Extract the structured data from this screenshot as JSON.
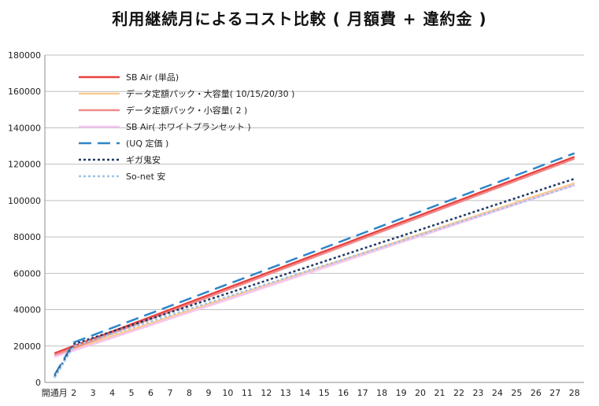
{
  "chart_data": {
    "type": "line",
    "title": "利用継続月によるコスト比較 ( 月額費 + 違約金 )",
    "xlabel": "",
    "ylabel": "",
    "ylim": [
      0,
      180000
    ],
    "yticks": [
      0,
      20000,
      40000,
      60000,
      80000,
      100000,
      120000,
      140000,
      160000,
      180000
    ],
    "categories": [
      "開通月",
      "2",
      "3",
      "4",
      "5",
      "6",
      "7",
      "8",
      "9",
      "10",
      "11",
      "12",
      "13",
      "14",
      "15",
      "16",
      "17",
      "18",
      "19",
      "20",
      "21",
      "22",
      "23",
      "24",
      "25",
      "26",
      "27",
      "28"
    ],
    "grid": true,
    "legend_position": "top-left",
    "series": [
      {
        "name": "SB Air (単品)",
        "color": "#e8403e",
        "dash": "solid",
        "width": 2.5,
        "values": [
          16000,
          20000,
          24000,
          28000,
          32000,
          36000,
          40000,
          44000,
          48000,
          52000,
          56000,
          60000,
          64000,
          68000,
          72000,
          76000,
          80000,
          84000,
          88000,
          92000,
          96000,
          100000,
          104000,
          108000,
          112000,
          116000,
          120000,
          124000
        ]
      },
      {
        "name": "データ定額パック・大容量( 10/15/20/30 )",
        "color": "#fbc98f",
        "dash": "solid",
        "width": 2.5,
        "values": [
          15000,
          18500,
          22000,
          25500,
          29000,
          32500,
          36000,
          39500,
          43000,
          46500,
          50000,
          53500,
          57000,
          60500,
          64000,
          67500,
          71000,
          74500,
          78000,
          81500,
          85000,
          88500,
          92000,
          95500,
          99000,
          102500,
          106000,
          109500
        ]
      },
      {
        "name": "データ定額パック・小容量( 2 )",
        "color": "#f08a8a",
        "dash": "solid",
        "width": 2.5,
        "values": [
          15000,
          19000,
          23000,
          27000,
          31000,
          35000,
          39000,
          43000,
          47000,
          51000,
          55000,
          59000,
          63000,
          67000,
          71000,
          75000,
          79000,
          83000,
          87000,
          91000,
          95000,
          99000,
          103000,
          107000,
          111000,
          115000,
          119000,
          123000
        ]
      },
      {
        "name": "SB Air( ホワイトプランセット )",
        "color": "#f7c6f3",
        "dash": "solid",
        "width": 2.5,
        "values": [
          14000,
          17500,
          21000,
          24500,
          28000,
          31500,
          35000,
          38500,
          42000,
          45500,
          49000,
          52500,
          56000,
          59500,
          63000,
          66500,
          70000,
          73500,
          77000,
          80500,
          84000,
          87500,
          91000,
          94500,
          98000,
          101500,
          105000,
          108500
        ]
      },
      {
        "name": "(UQ 定価 )",
        "color": "#2e86c8",
        "dash": "long-dash",
        "width": 2.5,
        "values": [
          4000,
          22000,
          26000,
          30000,
          34000,
          38000,
          42000,
          46000,
          50000,
          54000,
          58000,
          62000,
          66000,
          70000,
          74000,
          78000,
          82000,
          86000,
          90000,
          94000,
          98000,
          102000,
          106000,
          110000,
          114000,
          118000,
          122000,
          126000
        ]
      },
      {
        "name": "ギガ鬼安",
        "color": "#1f3864",
        "dash": "dotted",
        "width": 2.5,
        "values": [
          3000,
          21000,
          24500,
          28000,
          31500,
          35000,
          38500,
          42000,
          45500,
          49000,
          52500,
          56000,
          59500,
          63000,
          66500,
          70000,
          73500,
          77000,
          80500,
          84000,
          87500,
          91000,
          94500,
          98000,
          101500,
          105000,
          108500,
          112000
        ]
      },
      {
        "name": "So-net 安",
        "color": "#9dc3e6",
        "dash": "dotted",
        "width": 2.5,
        "values": [
          2500,
          20000,
          23400,
          26800,
          30200,
          33600,
          37000,
          40400,
          43800,
          47200,
          50600,
          54000,
          57400,
          60800,
          64200,
          67600,
          71000,
          74400,
          77800,
          81200,
          84600,
          88000,
          91400,
          94800,
          98200,
          101600,
          105000,
          108400
        ]
      }
    ]
  }
}
